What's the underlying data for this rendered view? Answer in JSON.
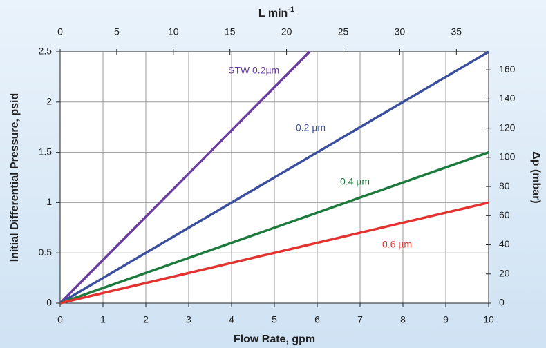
{
  "chart_data": {
    "type": "line",
    "xlabel": "Flow Rate, gpm",
    "ylabel": "Initial Differential Pressure, psid",
    "x2label": "L min",
    "x2label_sup": "-1",
    "y2label": "Δp (mbar)",
    "xlim": [
      0,
      10
    ],
    "xticks": [
      0,
      1,
      2,
      3,
      4,
      5,
      6,
      7,
      8,
      9,
      10
    ],
    "ylim": [
      0,
      2.5
    ],
    "yticks": [
      0,
      0.5,
      1,
      1.5,
      2,
      2.5
    ],
    "x2lim": [
      0,
      37.85
    ],
    "x2ticks": [
      0,
      5,
      10,
      15,
      20,
      25,
      30,
      35
    ],
    "y2lim": [
      0,
      172.4
    ],
    "y2ticks": [
      0,
      20,
      40,
      60,
      80,
      100,
      120,
      140,
      160
    ],
    "grid": true,
    "series": [
      {
        "name": "STW 0.2µm",
        "color": "#6a3d9e",
        "x": [
          0,
          5.82
        ],
        "values": [
          0,
          2.5
        ]
      },
      {
        "name": "0.2 µm",
        "color": "#3b4f9e",
        "x": [
          0,
          10
        ],
        "values": [
          0,
          2.5
        ]
      },
      {
        "name": "0.4 µm",
        "color": "#1b7a3c",
        "x": [
          0,
          10
        ],
        "values": [
          0,
          1.5
        ]
      },
      {
        "name": "0.6 µm",
        "color": "#e23330",
        "x": [
          0,
          10
        ],
        "values": [
          0,
          1.0
        ]
      }
    ]
  }
}
